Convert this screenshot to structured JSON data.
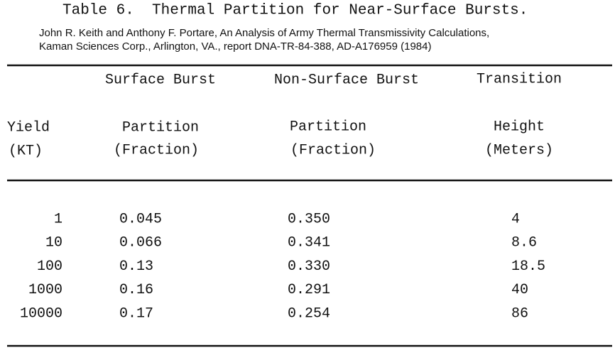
{
  "title": "Table 6.  Thermal Partition for Near-Surface Bursts.",
  "citation": [
    "John R. Keith and Anthony F. Portare, An Analysis of Army Thermal Transmissivity Calculations,",
    "Kaman Sciences Corp., Arlington, VA., report DNA-TR-84-388, AD-A176959 (1984)"
  ],
  "table": {
    "group_headers": [
      "Surface Burst",
      "Non-Surface Burst",
      "Transition"
    ],
    "columns": [
      [
        "Yield",
        "(KT)"
      ],
      [
        "Partition",
        "(Fraction)"
      ],
      [
        "Partition",
        "(Fraction)"
      ],
      [
        "Height",
        "(Meters)"
      ]
    ],
    "rows": [
      [
        "1",
        "0.045",
        "0.350",
        "4"
      ],
      [
        "10",
        "0.066",
        "0.341",
        "8.6"
      ],
      [
        "100",
        "0.13",
        "0.330",
        "18.5"
      ],
      [
        "1000",
        "0.16",
        "0.291",
        "40"
      ],
      [
        "10000",
        "0.17",
        "0.254",
        "86"
      ]
    ]
  }
}
